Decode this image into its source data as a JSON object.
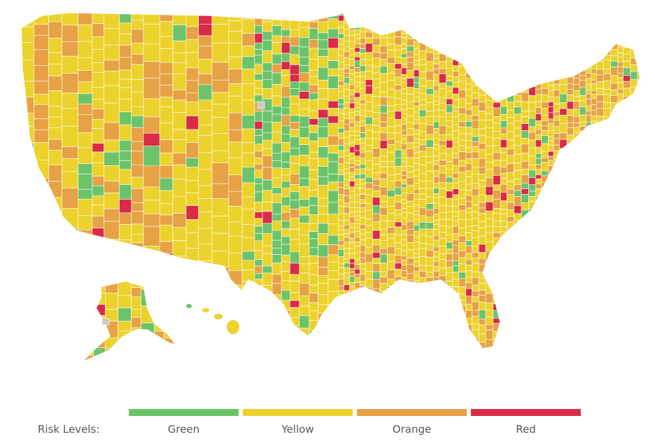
{
  "legend": {
    "title": "Risk Levels:",
    "items": [
      {
        "label": "Green",
        "color": "#6cc46a"
      },
      {
        "label": "Yellow",
        "color": "#ecd22c"
      },
      {
        "label": "Orange",
        "color": "#e6a244"
      },
      {
        "label": "Red",
        "color": "#d92b48"
      }
    ]
  },
  "colors": {
    "nodata": "#c9c9c9",
    "border": "#ffffff"
  }
}
